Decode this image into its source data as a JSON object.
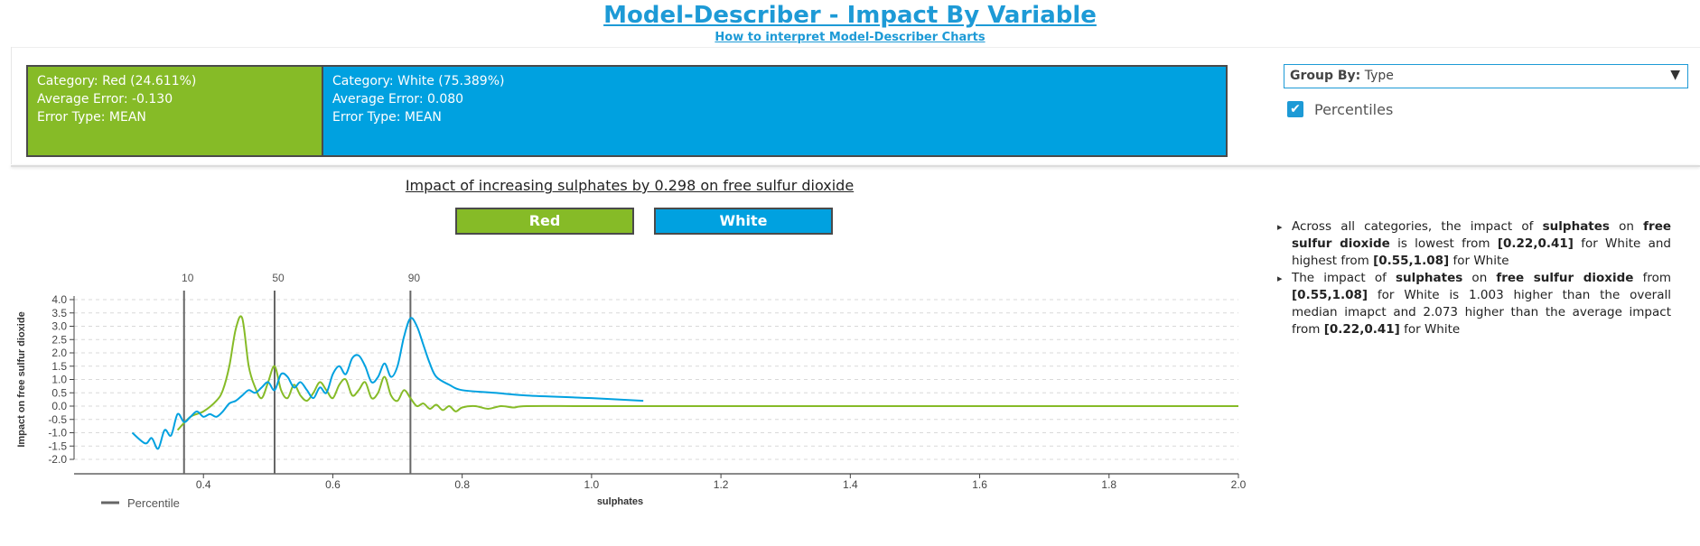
{
  "header": {
    "title": "Model-Describer - Impact By Variable",
    "help_link": "How to interpret Model-Describer Charts"
  },
  "categories": [
    {
      "title": "Category: Red (24.611%)",
      "error": "Average Error: -0.130",
      "type": "Error Type: MEAN",
      "color": "#86bb27"
    },
    {
      "title": "Category: White (75.389%)",
      "error": "Average Error: 0.080",
      "type": "Error Type: MEAN",
      "color": "#00a1e0"
    }
  ],
  "controls": {
    "group_by_label": "Group By:",
    "group_by_value": "Type",
    "percentiles_label": "Percentiles",
    "percentiles_checked": true
  },
  "chart_header": {
    "title": "Impact of increasing sulphates by 0.298 on free sulfur dioxide",
    "buttons": [
      "Red",
      "White"
    ]
  },
  "insights": [
    {
      "parts": [
        {
          "t": "Across all categories, the impact of ",
          "b": false
        },
        {
          "t": "sulphates",
          "b": true
        },
        {
          "t": " on ",
          "b": false
        },
        {
          "t": "free sulfur dioxide",
          "b": true
        },
        {
          "t": " is lowest from ",
          "b": false
        },
        {
          "t": "[0.22,0.41]",
          "b": true
        },
        {
          "t": " for White and highest from ",
          "b": false
        },
        {
          "t": "[0.55,1.08]",
          "b": true
        },
        {
          "t": " for White",
          "b": false
        }
      ]
    },
    {
      "parts": [
        {
          "t": "The impact of ",
          "b": false
        },
        {
          "t": "sulphates",
          "b": true
        },
        {
          "t": " on ",
          "b": false
        },
        {
          "t": "free sulfur dioxide",
          "b": true
        },
        {
          "t": " from ",
          "b": false
        },
        {
          "t": "[0.55,1.08]",
          "b": true
        },
        {
          "t": " for White is 1.003 higher than the overall median imapct and 2.073 higher than the average impact from ",
          "b": false
        },
        {
          "t": "[0.22,0.41]",
          "b": true
        },
        {
          "t": " for White",
          "b": false
        }
      ]
    }
  ],
  "chart_data": {
    "type": "line",
    "xlabel": "sulphates",
    "ylabel": "Impact on free sulfur dioxide",
    "xlim": [
      0.2,
      2.0
    ],
    "ylim": [
      -2.0,
      4.0
    ],
    "x_ticks": [
      0.4,
      0.6,
      0.8,
      1.0,
      1.2,
      1.4,
      1.6,
      1.8,
      2.0
    ],
    "x_tick_labels": [
      "0.4",
      "0.6",
      "0.8",
      "1.0",
      "1.2",
      "1.4",
      "1.6",
      "1.8",
      "2.0"
    ],
    "y_ticks": [
      -2.0,
      -1.5,
      -1.0,
      -0.5,
      0.0,
      0.5,
      1.0,
      1.5,
      2.0,
      2.5,
      3.0,
      3.5,
      4.0
    ],
    "y_tick_labels": [
      "-2.0",
      "-1.5",
      "-1.0",
      "-0.5",
      "0.0",
      "0.5",
      "1.0",
      "1.5",
      "2.0",
      "2.5",
      "3.0",
      "3.5",
      "4.0"
    ],
    "grid": "horizontal dashed",
    "percentiles": [
      {
        "label": "10",
        "x": 0.37
      },
      {
        "label": "50",
        "x": 0.51
      },
      {
        "label": "90",
        "x": 0.72
      }
    ],
    "legend": "Percentile",
    "series": [
      {
        "name": "Red",
        "color": "#86bb27",
        "x": [
          0.36,
          0.38,
          0.4,
          0.42,
          0.43,
          0.44,
          0.45,
          0.46,
          0.47,
          0.48,
          0.49,
          0.5,
          0.51,
          0.52,
          0.53,
          0.54,
          0.55,
          0.56,
          0.57,
          0.58,
          0.59,
          0.6,
          0.61,
          0.62,
          0.63,
          0.64,
          0.65,
          0.66,
          0.67,
          0.68,
          0.69,
          0.7,
          0.71,
          0.72,
          0.73,
          0.74,
          0.75,
          0.76,
          0.77,
          0.78,
          0.79,
          0.8,
          0.82,
          0.84,
          0.86,
          0.88,
          0.9,
          1.0,
          1.2,
          1.4,
          1.6,
          1.8,
          2.0
        ],
        "y": [
          -0.9,
          -0.4,
          -0.2,
          0.2,
          0.6,
          1.5,
          2.9,
          3.3,
          1.5,
          0.7,
          0.3,
          0.9,
          1.5,
          0.6,
          0.3,
          0.8,
          0.4,
          0.2,
          0.5,
          0.9,
          0.6,
          0.3,
          0.8,
          1.0,
          0.4,
          0.6,
          0.9,
          0.3,
          0.5,
          1.1,
          0.4,
          0.2,
          0.6,
          0.3,
          0.0,
          0.1,
          -0.1,
          0.05,
          -0.15,
          0.0,
          -0.2,
          -0.05,
          0.0,
          -0.1,
          0.0,
          -0.05,
          0.0,
          0.0,
          0.0,
          0.0,
          0.0,
          0.0,
          0.0
        ]
      },
      {
        "name": "White",
        "color": "#00a1e0",
        "x": [
          0.29,
          0.31,
          0.32,
          0.33,
          0.34,
          0.35,
          0.36,
          0.37,
          0.38,
          0.39,
          0.4,
          0.41,
          0.42,
          0.43,
          0.44,
          0.45,
          0.46,
          0.47,
          0.48,
          0.49,
          0.5,
          0.51,
          0.52,
          0.53,
          0.54,
          0.55,
          0.56,
          0.57,
          0.58,
          0.59,
          0.6,
          0.61,
          0.62,
          0.63,
          0.64,
          0.65,
          0.66,
          0.67,
          0.68,
          0.69,
          0.7,
          0.71,
          0.72,
          0.73,
          0.74,
          0.75,
          0.76,
          0.78,
          0.8,
          0.85,
          0.9,
          1.0,
          1.08
        ],
        "y": [
          -1.0,
          -1.4,
          -1.2,
          -1.6,
          -0.9,
          -1.1,
          -0.3,
          -0.6,
          -0.4,
          -0.2,
          -0.4,
          -0.3,
          -0.4,
          -0.2,
          0.1,
          0.2,
          0.4,
          0.6,
          0.5,
          0.7,
          0.9,
          0.6,
          1.2,
          1.1,
          0.7,
          0.9,
          0.6,
          0.3,
          0.7,
          0.5,
          1.2,
          1.5,
          1.2,
          1.8,
          1.9,
          1.5,
          0.9,
          1.1,
          1.6,
          1.1,
          1.5,
          2.6,
          3.3,
          3.0,
          2.3,
          1.6,
          1.1,
          0.8,
          0.6,
          0.5,
          0.4,
          0.3,
          0.2
        ]
      }
    ]
  }
}
